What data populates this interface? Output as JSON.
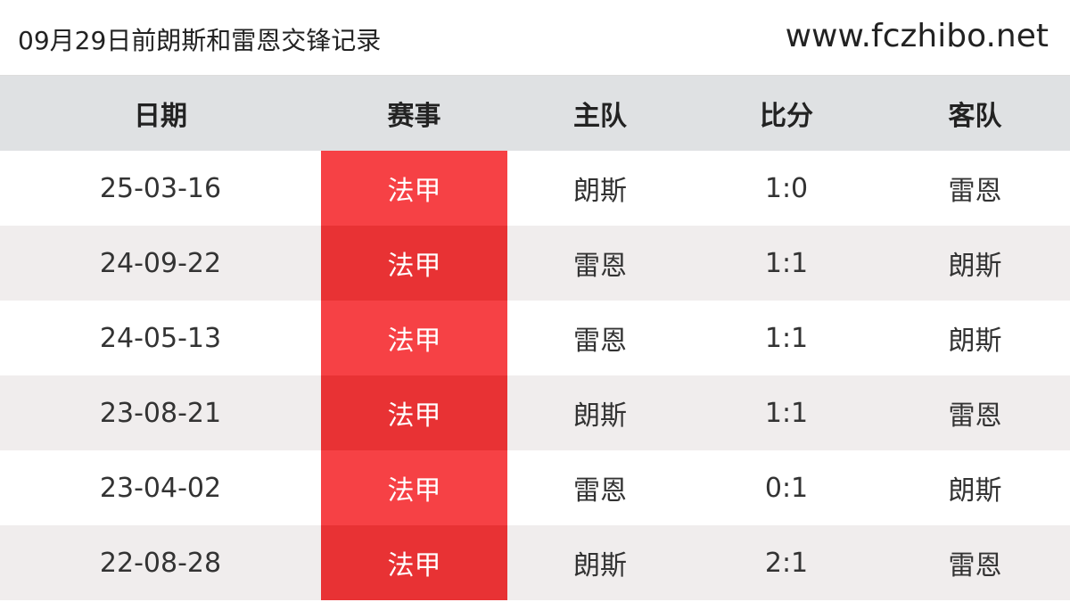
{
  "header": {
    "title": "09月29日前朗斯和雷恩交锋记录",
    "site": "www.fczhibo.net"
  },
  "table": {
    "columns": [
      "日期",
      "赛事",
      "主队",
      "比分",
      "客队"
    ],
    "rows": [
      [
        "25-03-16",
        "法甲",
        "朗斯",
        "1:0",
        "雷恩"
      ],
      [
        "24-09-22",
        "法甲",
        "雷恩",
        "1:1",
        "朗斯"
      ],
      [
        "24-05-13",
        "法甲",
        "雷恩",
        "1:1",
        "朗斯"
      ],
      [
        "23-08-21",
        "法甲",
        "朗斯",
        "1:1",
        "雷恩"
      ],
      [
        "23-04-02",
        "法甲",
        "雷恩",
        "0:1",
        "朗斯"
      ],
      [
        "22-08-28",
        "法甲",
        "朗斯",
        "2:1",
        "雷恩"
      ]
    ]
  },
  "colors": {
    "league_cell": "#f64145",
    "league_cell_alt": "#e83234",
    "header_bg": "#dfe1e3"
  }
}
